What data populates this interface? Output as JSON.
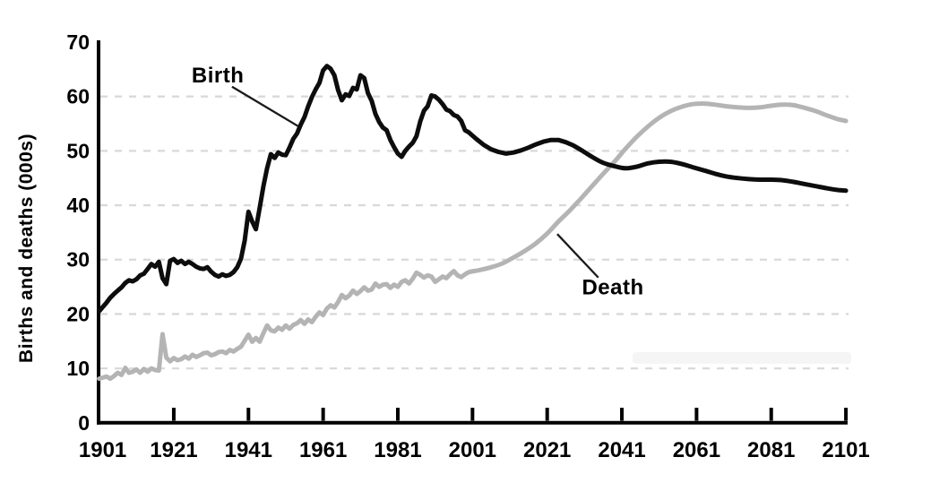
{
  "chart_data": {
    "type": "line",
    "title": "",
    "xlabel": "",
    "ylabel": "Births and deaths (000s)",
    "xlim": [
      1901,
      2101
    ],
    "ylim": [
      0,
      70
    ],
    "x_ticks": [
      1901,
      1921,
      1941,
      1961,
      1981,
      2001,
      2021,
      2041,
      2061,
      2081,
      2101
    ],
    "y_ticks": [
      0,
      10,
      20,
      30,
      40,
      50,
      60,
      70
    ],
    "grid": "horizontal-dashed-at-10s",
    "legend": "inline-annotations-with-leader-lines",
    "colors": {
      "birth_line": "#0d0d0d",
      "death_line": "#b4b4b4",
      "axis": "#000000",
      "grid": "#d9d9d9",
      "background": "#ffffff",
      "annotation_text": "#000000"
    },
    "series": [
      {
        "name": "Birth",
        "color": "#0d0d0d",
        "points": [
          [
            1901,
            20.5
          ],
          [
            1902,
            21.3
          ],
          [
            1903,
            22.1
          ],
          [
            1904,
            23.0
          ],
          [
            1905,
            23.7
          ],
          [
            1906,
            24.3
          ],
          [
            1907,
            24.9
          ],
          [
            1908,
            25.7
          ],
          [
            1909,
            26.2
          ],
          [
            1910,
            26.0
          ],
          [
            1911,
            26.4
          ],
          [
            1912,
            27.1
          ],
          [
            1913,
            27.4
          ],
          [
            1914,
            28.3
          ],
          [
            1915,
            29.2
          ],
          [
            1916,
            28.7
          ],
          [
            1917,
            29.6
          ],
          [
            1918,
            26.6
          ],
          [
            1919,
            25.5
          ],
          [
            1920,
            29.8
          ],
          [
            1921,
            30.1
          ],
          [
            1922,
            29.4
          ],
          [
            1923,
            29.8
          ],
          [
            1924,
            29.2
          ],
          [
            1925,
            29.6
          ],
          [
            1926,
            29.2
          ],
          [
            1927,
            28.7
          ],
          [
            1928,
            28.4
          ],
          [
            1929,
            28.3
          ],
          [
            1930,
            28.6
          ],
          [
            1931,
            27.8
          ],
          [
            1932,
            27.2
          ],
          [
            1933,
            26.9
          ],
          [
            1934,
            27.3
          ],
          [
            1935,
            27.0
          ],
          [
            1936,
            27.2
          ],
          [
            1937,
            27.7
          ],
          [
            1938,
            28.6
          ],
          [
            1939,
            30.2
          ],
          [
            1940,
            33.5
          ],
          [
            1941,
            38.8
          ],
          [
            1942,
            37.0
          ],
          [
            1943,
            35.6
          ],
          [
            1944,
            39.5
          ],
          [
            1945,
            43.5
          ],
          [
            1946,
            46.8
          ],
          [
            1947,
            49.4
          ],
          [
            1948,
            48.7
          ],
          [
            1949,
            49.7
          ],
          [
            1950,
            49.3
          ],
          [
            1951,
            49.2
          ],
          [
            1952,
            50.6
          ],
          [
            1953,
            52.2
          ],
          [
            1954,
            53.2
          ],
          [
            1955,
            54.8
          ],
          [
            1956,
            56.2
          ],
          [
            1957,
            58.2
          ],
          [
            1958,
            59.9
          ],
          [
            1959,
            61.3
          ],
          [
            1960,
            62.5
          ],
          [
            1961,
            64.8
          ],
          [
            1962,
            65.6
          ],
          [
            1963,
            65.1
          ],
          [
            1964,
            63.9
          ],
          [
            1965,
            61.2
          ],
          [
            1966,
            59.3
          ],
          [
            1967,
            60.4
          ],
          [
            1968,
            60.1
          ],
          [
            1969,
            61.6
          ],
          [
            1970,
            61.3
          ],
          [
            1971,
            63.9
          ],
          [
            1972,
            63.4
          ],
          [
            1973,
            60.6
          ],
          [
            1974,
            59.2
          ],
          [
            1975,
            56.8
          ],
          [
            1976,
            55.3
          ],
          [
            1977,
            54.3
          ],
          [
            1978,
            53.8
          ],
          [
            1979,
            52.0
          ],
          [
            1980,
            50.7
          ],
          [
            1981,
            49.5
          ],
          [
            1982,
            48.9
          ],
          [
            1983,
            50.0
          ],
          [
            1984,
            50.8
          ],
          [
            1985,
            51.5
          ],
          [
            1986,
            52.7
          ],
          [
            1987,
            55.4
          ],
          [
            1988,
            57.4
          ],
          [
            1989,
            58.2
          ],
          [
            1990,
            60.2
          ],
          [
            1991,
            60.0
          ],
          [
            1992,
            59.4
          ],
          [
            1993,
            58.6
          ],
          [
            1994,
            57.6
          ],
          [
            1995,
            57.3
          ],
          [
            1996,
            56.6
          ],
          [
            1997,
            56.3
          ],
          [
            1998,
            55.5
          ],
          [
            1999,
            53.8
          ],
          [
            2000,
            53.4
          ],
          [
            2002,
            52.2
          ],
          [
            2004,
            51.1
          ],
          [
            2006,
            50.3
          ],
          [
            2008,
            49.8
          ],
          [
            2010,
            49.5
          ],
          [
            2012,
            49.7
          ],
          [
            2014,
            50.1
          ],
          [
            2016,
            50.6
          ],
          [
            2018,
            51.2
          ],
          [
            2020,
            51.7
          ],
          [
            2022,
            52.0
          ],
          [
            2024,
            52.0
          ],
          [
            2026,
            51.6
          ],
          [
            2028,
            51.0
          ],
          [
            2030,
            50.2
          ],
          [
            2033,
            48.9
          ],
          [
            2036,
            47.8
          ],
          [
            2039,
            47.2
          ],
          [
            2042,
            46.8
          ],
          [
            2045,
            47.1
          ],
          [
            2048,
            47.7
          ],
          [
            2051,
            48.0
          ],
          [
            2054,
            48.0
          ],
          [
            2057,
            47.6
          ],
          [
            2060,
            47.0
          ],
          [
            2063,
            46.4
          ],
          [
            2066,
            45.8
          ],
          [
            2069,
            45.3
          ],
          [
            2072,
            45.0
          ],
          [
            2075,
            44.8
          ],
          [
            2078,
            44.7
          ],
          [
            2081,
            44.7
          ],
          [
            2084,
            44.6
          ],
          [
            2087,
            44.3
          ],
          [
            2090,
            43.9
          ],
          [
            2093,
            43.5
          ],
          [
            2096,
            43.1
          ],
          [
            2099,
            42.8
          ],
          [
            2101,
            42.7
          ]
        ]
      },
      {
        "name": "Death",
        "color": "#b4b4b4",
        "points": [
          [
            1901,
            8.1
          ],
          [
            1902,
            8.3
          ],
          [
            1903,
            8.5
          ],
          [
            1904,
            8.1
          ],
          [
            1905,
            8.6
          ],
          [
            1906,
            9.2
          ],
          [
            1907,
            8.8
          ],
          [
            1908,
            10.1
          ],
          [
            1909,
            9.2
          ],
          [
            1910,
            9.4
          ],
          [
            1911,
            9.8
          ],
          [
            1912,
            9.2
          ],
          [
            1913,
            9.9
          ],
          [
            1914,
            9.4
          ],
          [
            1915,
            10.0
          ],
          [
            1916,
            9.7
          ],
          [
            1917,
            9.6
          ],
          [
            1918,
            16.3
          ],
          [
            1919,
            12.0
          ],
          [
            1920,
            11.3
          ],
          [
            1921,
            11.9
          ],
          [
            1922,
            11.5
          ],
          [
            1923,
            11.7
          ],
          [
            1924,
            12.2
          ],
          [
            1925,
            11.8
          ],
          [
            1926,
            12.5
          ],
          [
            1927,
            12.1
          ],
          [
            1928,
            12.4
          ],
          [
            1929,
            12.8
          ],
          [
            1930,
            12.9
          ],
          [
            1931,
            12.4
          ],
          [
            1932,
            12.6
          ],
          [
            1933,
            13.0
          ],
          [
            1934,
            13.1
          ],
          [
            1935,
            12.8
          ],
          [
            1936,
            13.4
          ],
          [
            1937,
            13.1
          ],
          [
            1938,
            13.6
          ],
          [
            1939,
            14.0
          ],
          [
            1940,
            15.1
          ],
          [
            1941,
            16.2
          ],
          [
            1942,
            14.9
          ],
          [
            1943,
            15.6
          ],
          [
            1944,
            14.9
          ],
          [
            1945,
            16.5
          ],
          [
            1946,
            17.9
          ],
          [
            1947,
            17.0
          ],
          [
            1948,
            16.8
          ],
          [
            1949,
            17.5
          ],
          [
            1950,
            17.1
          ],
          [
            1951,
            17.9
          ],
          [
            1952,
            17.3
          ],
          [
            1953,
            18.0
          ],
          [
            1954,
            18.3
          ],
          [
            1955,
            18.9
          ],
          [
            1956,
            18.2
          ],
          [
            1957,
            19.0
          ],
          [
            1958,
            18.5
          ],
          [
            1959,
            19.5
          ],
          [
            1960,
            20.3
          ],
          [
            1961,
            19.8
          ],
          [
            1962,
            21.0
          ],
          [
            1963,
            21.6
          ],
          [
            1964,
            21.2
          ],
          [
            1965,
            22.2
          ],
          [
            1966,
            23.5
          ],
          [
            1967,
            22.9
          ],
          [
            1968,
            23.4
          ],
          [
            1969,
            24.3
          ],
          [
            1970,
            23.7
          ],
          [
            1971,
            24.2
          ],
          [
            1972,
            24.9
          ],
          [
            1973,
            24.3
          ],
          [
            1974,
            24.5
          ],
          [
            1975,
            25.6
          ],
          [
            1976,
            25.0
          ],
          [
            1977,
            25.4
          ],
          [
            1978,
            25.5
          ],
          [
            1979,
            24.8
          ],
          [
            1980,
            25.4
          ],
          [
            1981,
            25.0
          ],
          [
            1982,
            25.9
          ],
          [
            1983,
            26.2
          ],
          [
            1984,
            25.6
          ],
          [
            1985,
            26.5
          ],
          [
            1986,
            27.6
          ],
          [
            1987,
            27.2
          ],
          [
            1988,
            26.7
          ],
          [
            1989,
            27.1
          ],
          [
            1990,
            26.9
          ],
          [
            1991,
            25.9
          ],
          [
            1992,
            26.4
          ],
          [
            1993,
            26.9
          ],
          [
            1994,
            26.6
          ],
          [
            1995,
            27.3
          ],
          [
            1996,
            27.9
          ],
          [
            1997,
            27.1
          ],
          [
            1998,
            26.8
          ],
          [
            1999,
            27.3
          ],
          [
            2000,
            27.7
          ],
          [
            2003,
            28.1
          ],
          [
            2006,
            28.6
          ],
          [
            2009,
            29.3
          ],
          [
            2012,
            30.4
          ],
          [
            2015,
            31.6
          ],
          [
            2018,
            33.0
          ],
          [
            2021,
            34.8
          ],
          [
            2024,
            37.0
          ],
          [
            2027,
            39.0
          ],
          [
            2030,
            41.2
          ],
          [
            2033,
            43.5
          ],
          [
            2036,
            45.8
          ],
          [
            2039,
            48.0
          ],
          [
            2042,
            50.4
          ],
          [
            2045,
            52.6
          ],
          [
            2048,
            54.5
          ],
          [
            2051,
            56.1
          ],
          [
            2054,
            57.3
          ],
          [
            2057,
            58.1
          ],
          [
            2060,
            58.6
          ],
          [
            2063,
            58.7
          ],
          [
            2066,
            58.5
          ],
          [
            2069,
            58.2
          ],
          [
            2072,
            58.0
          ],
          [
            2075,
            57.9
          ],
          [
            2078,
            58.0
          ],
          [
            2081,
            58.3
          ],
          [
            2084,
            58.5
          ],
          [
            2087,
            58.4
          ],
          [
            2090,
            57.9
          ],
          [
            2093,
            57.3
          ],
          [
            2096,
            56.5
          ],
          [
            2099,
            55.8
          ],
          [
            2101,
            55.5
          ]
        ]
      }
    ],
    "annotations": [
      {
        "text": "Birth",
        "series": "Birth",
        "label_year": 1932.8,
        "label_value": 63.9,
        "leader_from_year": 1936.6,
        "leader_from_value": 61.8,
        "leader_to_year": 1954.4,
        "leader_to_value": 54.5
      },
      {
        "text": "Death",
        "series": "Death",
        "label_year": 2038.6,
        "label_value": 24.9,
        "leader_from_year": 2034.7,
        "leader_from_value": 26.7,
        "leader_to_year": 2023.7,
        "leader_to_value": 34.7
      }
    ]
  }
}
